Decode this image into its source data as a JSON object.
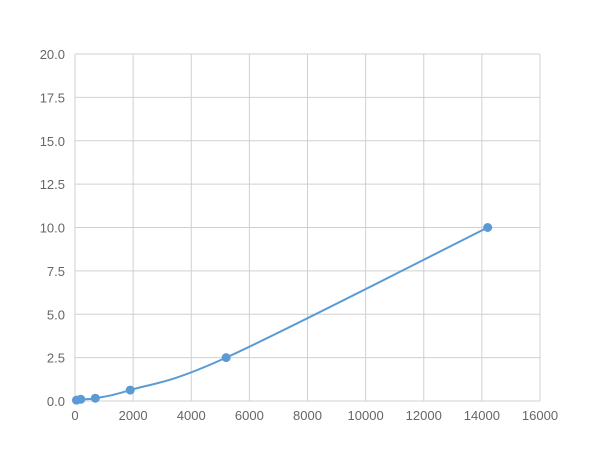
{
  "chart_data": {
    "type": "line",
    "title": "",
    "xlabel": "",
    "ylabel": "",
    "xlim": [
      0,
      16000
    ],
    "ylim": [
      0,
      20
    ],
    "xticks": [
      0,
      2000,
      4000,
      6000,
      8000,
      10000,
      12000,
      14000,
      16000
    ],
    "yticks": [
      "0.0",
      "2.5",
      "5.0",
      "7.5",
      "10.0",
      "12.5",
      "15.0",
      "17.5",
      "20.0"
    ],
    "grid": true,
    "color": "#5b9bd5",
    "series": [
      {
        "x": [
          50,
          200,
          700,
          1900,
          5200,
          14200
        ],
        "y": [
          0.05,
          0.1,
          0.16,
          0.63,
          2.5,
          10.0
        ]
      }
    ]
  }
}
